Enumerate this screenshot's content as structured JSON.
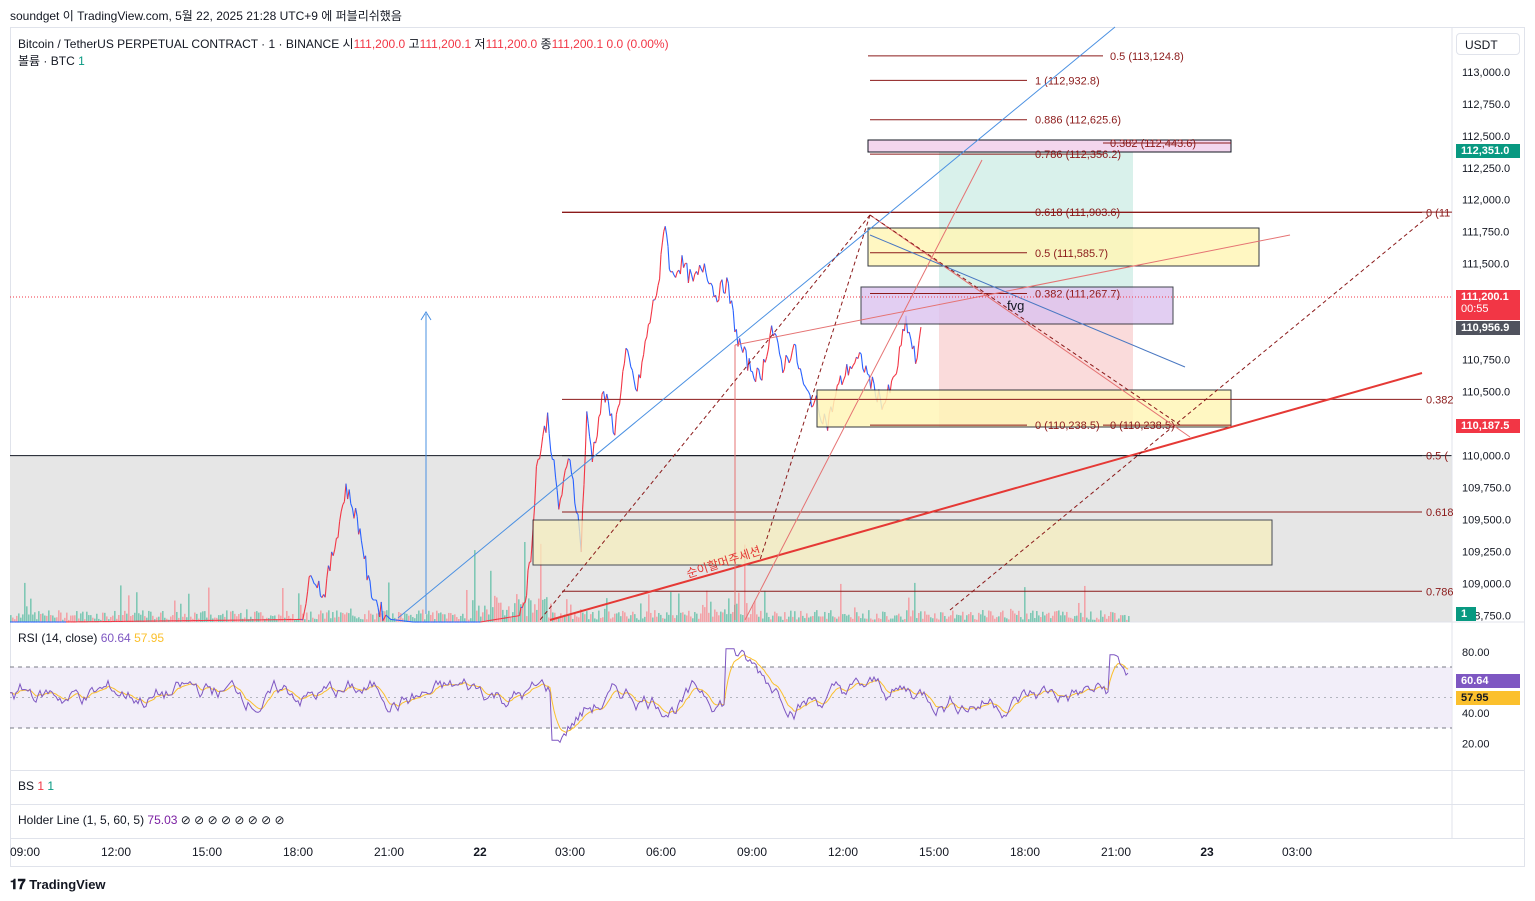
{
  "header": {
    "attribution": "soundget 이 TradingView.com, 5월 22, 2025 21:28 UTC+9 에 퍼블리쉬했음"
  },
  "legend": {
    "symbol": "Bitcoin / TetherUS PERPETUAL CONTRACT · 1 · BINANCE",
    "open_label": "시",
    "open": "111,200.0",
    "high_label": "고",
    "high": "111,200.1",
    "low_label": "저",
    "low": "111,200.0",
    "close_label": "종",
    "close": "111,200.1",
    "change": "0.0 (0.00%)",
    "volume_label": "볼륨 · BTC",
    "volume_value": "1"
  },
  "currency": "USDT",
  "panes": {
    "rsi_label": "RSI (14, close)",
    "rsi_value": "60.64",
    "rsi_ma": "57.95",
    "bs_label": "BS",
    "bs_v1": "1",
    "bs_v2": "1",
    "holder_label": "Holder Line (1, 5, 60, 5)",
    "holder_value": "75.03",
    "holder_icons": "⊘ ⊘ ⊘ ⊘ ⊘ ⊘ ⊘ ⊘"
  },
  "badges": {
    "price_top": "112,351.0",
    "last_price": "111,200.1",
    "countdown": "00:55",
    "gray_price": "110,956.9",
    "red_price": "110,187.5",
    "volume_badge": "1",
    "rsi_badge": "60.64",
    "rsi_ma_badge": "57.95"
  },
  "annotations": {
    "fvg": "fvg",
    "korean_text": "순이할머주세션"
  },
  "branding": "TradingView",
  "colors": {
    "up": "#f23645",
    "down": "#2962ff",
    "fib": "#8b1a1a",
    "rsi": "#7e57c2",
    "rsi_ma": "#fbc02d"
  },
  "chart_data": {
    "type": "line",
    "y_ticks": [
      "113,000.0",
      "112,750.0",
      "112,500.0",
      "112,250.0",
      "112,000.0",
      "111,750.0",
      "111,500.0",
      "111,250.0",
      "111,000.0",
      "110,750.0",
      "110,500.0",
      "110,250.0",
      "110,000.0",
      "109,750.0",
      "109,500.0",
      "109,250.0",
      "109,000.0",
      "108,750.0"
    ],
    "y_tick_values": [
      113000,
      112750,
      112500,
      112250,
      112000,
      111750,
      111500,
      111250,
      111000,
      110750,
      110500,
      110250,
      110000,
      109750,
      109500,
      109250,
      109000,
      108750
    ],
    "ylim": [
      108700,
      113350
    ],
    "x_ticks": [
      "09:00",
      "12:00",
      "15:00",
      "18:00",
      "21:00",
      "22",
      "03:00",
      "06:00",
      "09:00",
      "12:00",
      "15:00",
      "18:00",
      "21:00",
      "23",
      "03:00"
    ],
    "rsi_ticks": [
      "80.00",
      "40.00",
      "20.00"
    ],
    "rsi_tick_values": [
      80,
      40,
      20
    ],
    "rsi_levels": [
      70,
      30
    ],
    "fib_levels": [
      {
        "label": "0.5 (113,124.8)",
        "value": 113124.8
      },
      {
        "label": "1 (112,932.8)",
        "value": 112932.8
      },
      {
        "label": "0.886 (112,625.6)",
        "value": 112625.6
      },
      {
        "label": "0.382 (112,443.6)",
        "value": 112443.6
      },
      {
        "label": "0.786 (112,356.2)",
        "value": 112356.2
      },
      {
        "label": "0.618 (111,903.6)",
        "value": 111903.6
      },
      {
        "label": "0.5 (111,585.7)",
        "value": 111585.7
      },
      {
        "label": "0.382 (111,267.7)",
        "value": 111267.7
      },
      {
        "label": "0 (110,238.5)",
        "value": 110238.5
      },
      {
        "label": "0 (110,238.5)",
        "value": 110238.5
      }
    ],
    "right_fib_labels": [
      "0 (11",
      "0.382",
      "0.5 (",
      "0.618",
      "0.786"
    ],
    "price_key_points": [
      [
        0,
        108700
      ],
      [
        0.05,
        108700
      ],
      [
        0.26,
        108720
      ],
      [
        0.27,
        109100
      ],
      [
        0.28,
        108900
      ],
      [
        0.29,
        109300
      ],
      [
        0.3,
        109750
      ],
      [
        0.31,
        109500
      ],
      [
        0.315,
        109300
      ],
      [
        0.32,
        109000
      ],
      [
        0.33,
        108800
      ],
      [
        0.34,
        108720
      ],
      [
        0.36,
        108700
      ],
      [
        0.42,
        108700
      ],
      [
        0.455,
        108750
      ],
      [
        0.46,
        108900
      ],
      [
        0.465,
        109200
      ],
      [
        0.47,
        109900
      ],
      [
        0.48,
        110300
      ],
      [
        0.49,
        109600
      ],
      [
        0.5,
        110000
      ],
      [
        0.51,
        109300
      ],
      [
        0.515,
        110300
      ],
      [
        0.52,
        110000
      ],
      [
        0.53,
        110500
      ],
      [
        0.54,
        110200
      ],
      [
        0.55,
        110800
      ],
      [
        0.56,
        110500
      ],
      [
        0.57,
        111000
      ],
      [
        0.58,
        111400
      ],
      [
        0.585,
        111850
      ],
      [
        0.59,
        111400
      ],
      [
        0.6,
        111500
      ],
      [
        0.61,
        111350
      ],
      [
        0.62,
        111500
      ],
      [
        0.63,
        111250
      ],
      [
        0.64,
        111350
      ],
      [
        0.65,
        110900
      ],
      [
        0.66,
        110700
      ],
      [
        0.67,
        110600
      ],
      [
        0.68,
        111000
      ],
      [
        0.69,
        110700
      ],
      [
        0.7,
        110850
      ],
      [
        0.71,
        110500
      ],
      [
        0.72,
        110400
      ],
      [
        0.73,
        110250
      ],
      [
        0.74,
        110550
      ],
      [
        0.75,
        110700
      ],
      [
        0.76,
        110750
      ],
      [
        0.77,
        110550
      ],
      [
        0.78,
        110400
      ],
      [
        0.79,
        110600
      ],
      [
        0.8,
        111050
      ],
      [
        0.81,
        110700
      ],
      [
        0.815,
        111200
      ]
    ]
  }
}
